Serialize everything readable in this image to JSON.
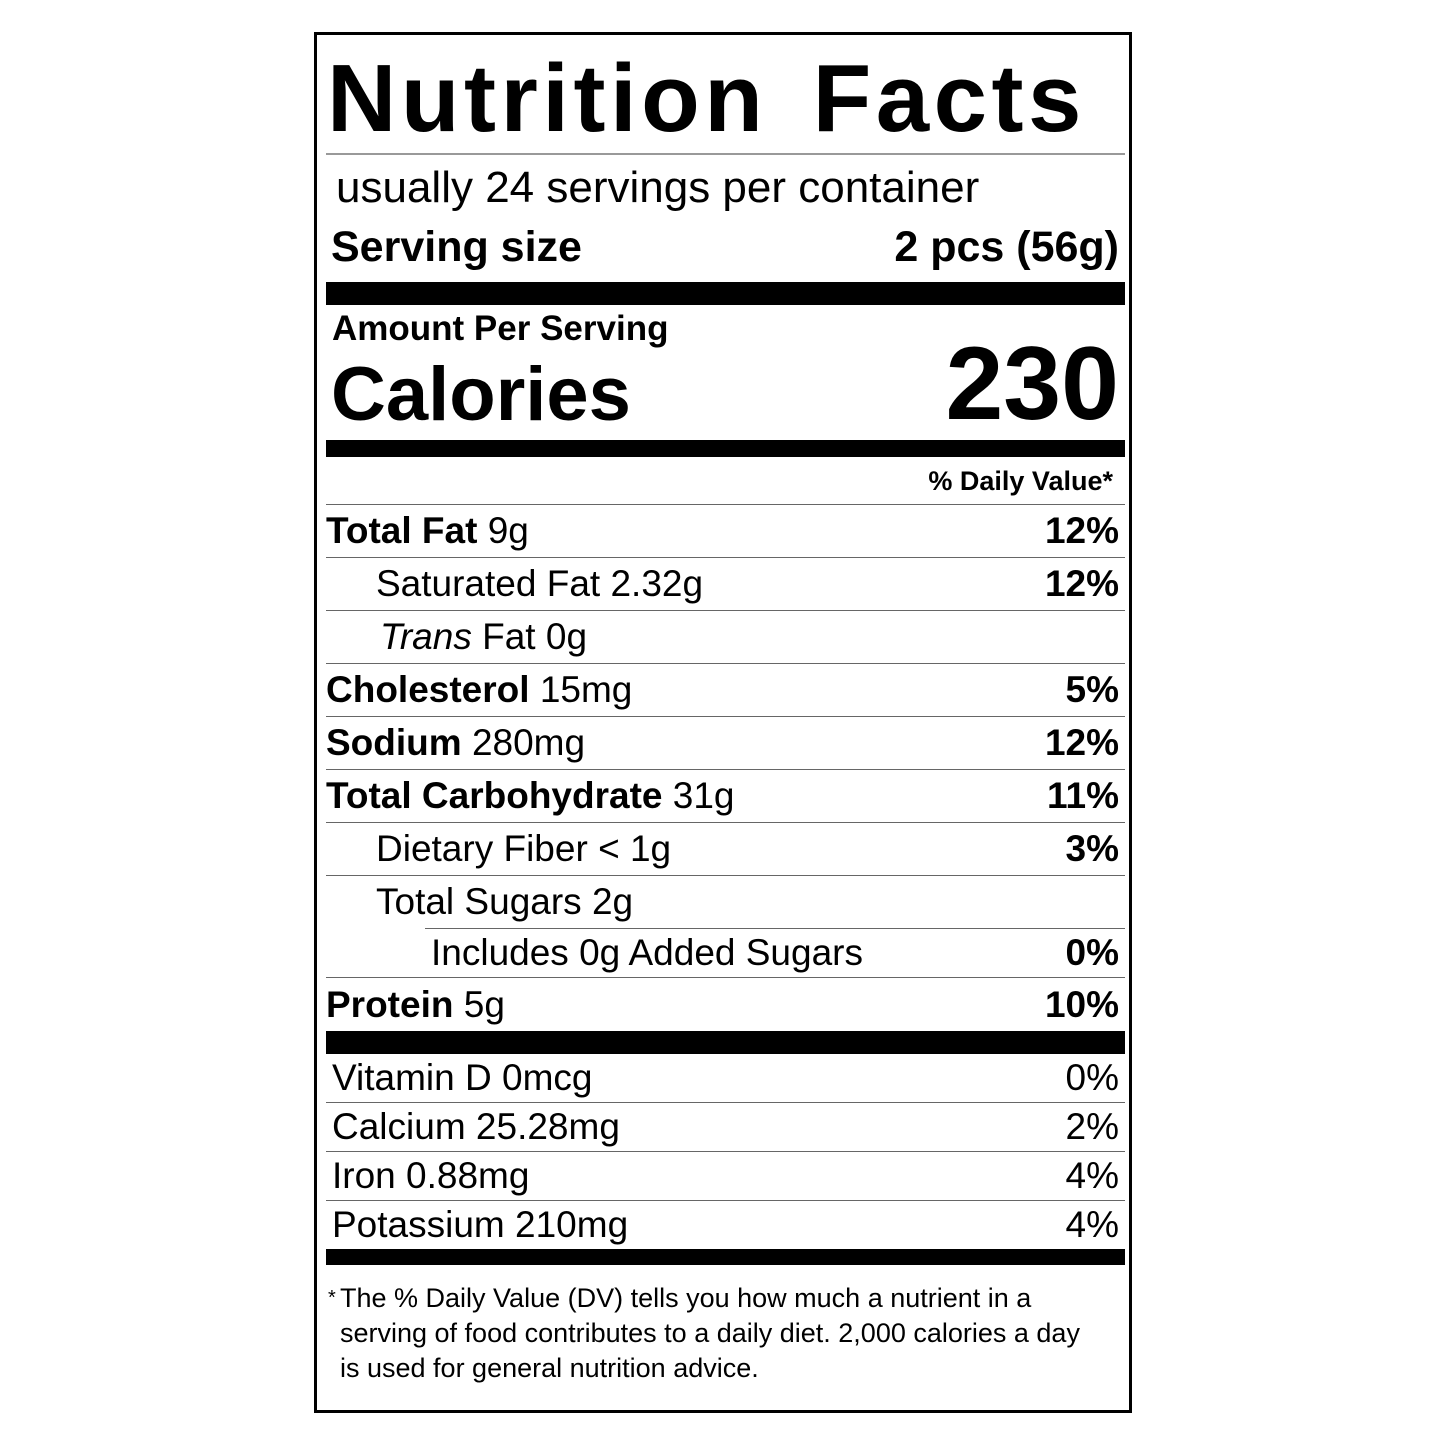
{
  "title": "Nutrition Facts",
  "servings_per_container": "usually 24 servings per container",
  "serving_size": {
    "label": "Serving size",
    "value": "2 pcs (56g)"
  },
  "amount_per_serving": "Amount Per Serving",
  "calories": {
    "label": "Calories",
    "value": "230"
  },
  "daily_value_header": "% Daily Value*",
  "nutrients": [
    {
      "name": "Total Fat",
      "amount": "9g",
      "dv": "12%"
    },
    {
      "name": "Saturated Fat",
      "amount": "2.32g",
      "dv": "12%"
    },
    {
      "name_italic": "Trans",
      "name": "Fat",
      "amount": "0g"
    },
    {
      "name": "Cholesterol",
      "amount": "15mg",
      "dv": "5%"
    },
    {
      "name": "Sodium",
      "amount": "280mg",
      "dv": "12%"
    },
    {
      "name": "Total Carbohydrate",
      "amount": "31g",
      "dv": "11%"
    },
    {
      "name": "Dietary Fiber",
      "amount": "< 1g",
      "dv": "3%"
    },
    {
      "name": "Total Sugars",
      "amount": "2g"
    },
    {
      "text": "Includes 0g Added Sugars",
      "dv": "0%"
    },
    {
      "name": "Protein",
      "amount": "5g",
      "dv": "10%"
    }
  ],
  "vitamins": [
    {
      "text": "Vitamin D 0mcg",
      "dv": "0%"
    },
    {
      "text": "Calcium 25.28mg",
      "dv": "2%"
    },
    {
      "text": "Iron 0.88mg",
      "dv": "4%"
    },
    {
      "text": "Potassium 210mg",
      "dv": "4%"
    }
  ],
  "footnote": {
    "asterisk": "*",
    "text": "The % Daily Value (DV) tells you how much a nutrient in a serving of food contributes to a daily diet. 2,000 calories a day is used for general nutrition advice."
  }
}
